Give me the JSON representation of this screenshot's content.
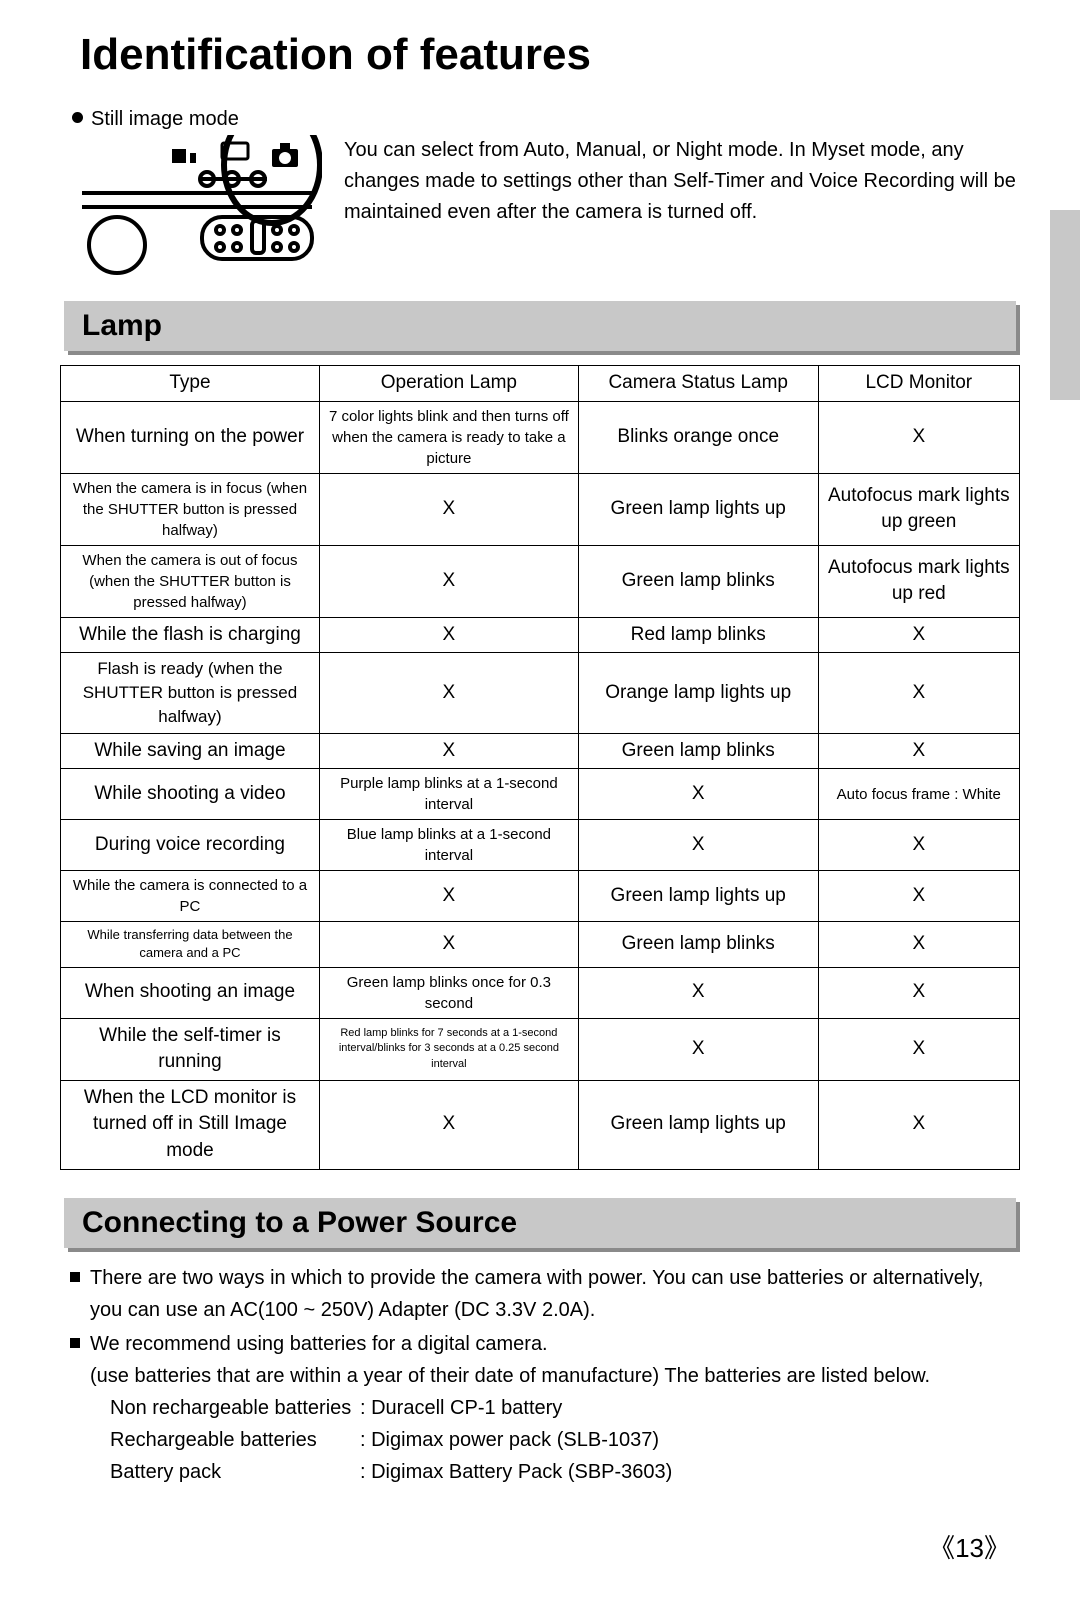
{
  "colors": {
    "header_bg": "#c8c8c8",
    "header_shadow": "#8a8a8a",
    "side_tab": "#c8c8c8",
    "text": "#000000",
    "background": "#ffffff",
    "table_border": "#000000"
  },
  "page_title": "Identification of features",
  "still_image": {
    "label": "Still image mode",
    "description": "You can select from Auto, Manual, or Night mode. In Myset mode, any changes made to settings other than Self-Timer and Voice Recording will be maintained even after the camera is turned off."
  },
  "lamp": {
    "heading": "Lamp",
    "columns": [
      "Type",
      "Operation Lamp",
      "Camera Status Lamp",
      "LCD Monitor"
    ],
    "col_widths_pct": [
      27,
      27,
      25,
      21
    ],
    "rows": [
      {
        "type": "When turning on the power",
        "type_fs": 19,
        "op": "7 color lights blink and then turns off when the camera is ready to take a picture",
        "op_fs": 15,
        "cs": "Blinks orange once",
        "cs_fs": 19,
        "lcd": "X",
        "lcd_fs": 19
      },
      {
        "type": "When the camera is in focus (when the SHUTTER button is pressed halfway)",
        "type_fs": 15,
        "op": "X",
        "op_fs": 19,
        "cs": "Green lamp lights up",
        "cs_fs": 19,
        "lcd": "Autofocus mark lights up green",
        "lcd_fs": 19
      },
      {
        "type": "When the camera is out of focus (when the SHUTTER button is pressed halfway)",
        "type_fs": 15,
        "op": "X",
        "op_fs": 19,
        "cs": "Green lamp blinks",
        "cs_fs": 19,
        "lcd": "Autofocus mark lights up red",
        "lcd_fs": 19
      },
      {
        "type": "While the flash is charging",
        "type_fs": 19,
        "op": "X",
        "op_fs": 19,
        "cs": "Red lamp blinks",
        "cs_fs": 19,
        "lcd": "X",
        "lcd_fs": 19
      },
      {
        "type": "Flash is ready (when the SHUTTER button is pressed halfway)",
        "type_fs": 17,
        "op": "X",
        "op_fs": 19,
        "cs": "Orange lamp lights up",
        "cs_fs": 19,
        "lcd": "X",
        "lcd_fs": 19
      },
      {
        "type": "While saving an image",
        "type_fs": 19,
        "op": "X",
        "op_fs": 19,
        "cs": "Green lamp blinks",
        "cs_fs": 19,
        "lcd": "X",
        "lcd_fs": 19
      },
      {
        "type": "While shooting a video",
        "type_fs": 19,
        "op": "Purple lamp blinks at a 1-second interval",
        "op_fs": 15,
        "cs": "X",
        "cs_fs": 19,
        "lcd": "Auto focus frame : White",
        "lcd_fs": 15
      },
      {
        "type": "During voice recording",
        "type_fs": 19,
        "op": "Blue lamp blinks at a 1-second interval",
        "op_fs": 15,
        "cs": "X",
        "cs_fs": 19,
        "lcd": "X",
        "lcd_fs": 19
      },
      {
        "type": "While the camera is connected to a PC",
        "type_fs": 15,
        "op": "X",
        "op_fs": 19,
        "cs": "Green lamp lights up",
        "cs_fs": 19,
        "lcd": "X",
        "lcd_fs": 19
      },
      {
        "type": "While transferring data between the camera and a PC",
        "type_fs": 13,
        "op": "X",
        "op_fs": 19,
        "cs": "Green lamp blinks",
        "cs_fs": 19,
        "lcd": "X",
        "lcd_fs": 19
      },
      {
        "type": "When shooting an image",
        "type_fs": 19,
        "op": "Green lamp blinks once for 0.3 second",
        "op_fs": 15,
        "cs": "X",
        "cs_fs": 19,
        "lcd": "X",
        "lcd_fs": 19
      },
      {
        "type": "While the self-timer is running",
        "type_fs": 19,
        "op": "Red lamp blinks for 7 seconds at a 1-second interval/blinks for 3 seconds at a 0.25 second interval",
        "op_fs": 11,
        "cs": "X",
        "cs_fs": 19,
        "lcd": "X",
        "lcd_fs": 19
      },
      {
        "type": "When the LCD monitor is turned off in Still Image mode",
        "type_fs": 19,
        "op": "X",
        "op_fs": 19,
        "cs": "Green lamp lights up",
        "cs_fs": 19,
        "lcd": "X",
        "lcd_fs": 19
      }
    ]
  },
  "power": {
    "heading": "Connecting to a Power Source",
    "bullets": [
      "There are two ways in which to provide the camera with power. You can use batteries or alternatively, you can use an AC(100 ~ 250V) Adapter (DC 3.3V 2.0A).",
      "We recommend using batteries for a digital camera."
    ],
    "note": "(use batteries that are within a year of their date of manufacture) The batteries are listed below.",
    "specs": [
      {
        "label": "Non rechargeable batteries",
        "value": ": Duracell CP-1 battery"
      },
      {
        "label": "Rechargeable batteries",
        "value": ": Digimax power pack (SLB-1037)"
      },
      {
        "label": "Battery pack",
        "value": ": Digimax Battery Pack (SBP-3603)"
      }
    ]
  },
  "page_number": "13"
}
